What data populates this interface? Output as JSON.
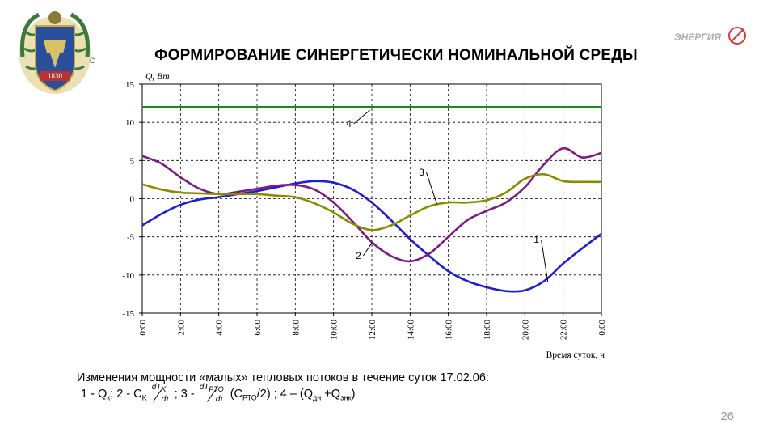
{
  "slide": {
    "title": "ФОРМИРОВАНИЕ СИНЕРГЕТИЧЕСКИ НОМИНАЛЬНОЙ СРЕДЫ",
    "logo_text": "ЭНЕРГИЯ",
    "emblem_year": "1830",
    "emblem_letter": "С",
    "page_number": "26",
    "caption": "Изменения мощности «малых» тепловых потоков в течение суток 17.02.06:",
    "formula": {
      "p1": "1 - Q",
      "p1_sub": "к",
      "p2": "; 2 - C",
      "p2_sub": "K",
      "frac1_num": "dT",
      "frac1_num_sub": "K",
      "frac1_den": "dτ",
      "p3": "; 3 - ",
      "frac2_num": "dT",
      "frac2_num_sub": "PTO",
      "frac2_den": "dτ",
      "p4": "(C",
      "p4_sub": "РТО",
      "p5": "/2) ;   4 – (Q",
      "p5_sub": "дн",
      "p6": " +Q",
      "p6_sub": "энк",
      "p7": ")"
    }
  },
  "chart_data": {
    "type": "line",
    "ylabel": "Q, Вт",
    "xlabel": "Время суток, ч",
    "ylim": [
      -15,
      15
    ],
    "yticks": [
      15,
      10,
      5,
      0,
      -5,
      -10,
      -15
    ],
    "xlim": [
      0,
      24
    ],
    "xticks": [
      "0:00",
      "2:00",
      "4:00",
      "6:00",
      "8:00",
      "10:00",
      "12:00",
      "14:00",
      "16:00",
      "18:00",
      "20:00",
      "22:00",
      "0:00"
    ],
    "grid": true,
    "series": [
      {
        "name": "1",
        "color": "#1f1fd0",
        "x": [
          0,
          1,
          2,
          3,
          4,
          5,
          6,
          7,
          8,
          9,
          10,
          11,
          12,
          13,
          14,
          15,
          16,
          17,
          18,
          19,
          20,
          21,
          22,
          23,
          24
        ],
        "y": [
          -3.5,
          -2,
          -0.8,
          -0.1,
          0.2,
          0.6,
          1.0,
          1.5,
          2.0,
          2.3,
          2.1,
          1.2,
          -0.5,
          -2.8,
          -5.3,
          -7.5,
          -9.5,
          -10.8,
          -11.6,
          -12.1,
          -12.0,
          -10.8,
          -8.5,
          -6.5,
          -4.6
        ]
      },
      {
        "name": "2",
        "color": "#7d1a87",
        "x": [
          0,
          1,
          2,
          3,
          4,
          5,
          6,
          7,
          8,
          9,
          10,
          11,
          12,
          13,
          14,
          15,
          16,
          17,
          18,
          19,
          20,
          21,
          22,
          23,
          24
        ],
        "y": [
          5.6,
          4.6,
          2.8,
          1.3,
          0.6,
          0.9,
          1.3,
          1.7,
          1.8,
          1.2,
          -0.5,
          -3.0,
          -5.7,
          -7.5,
          -8.2,
          -7.2,
          -5.0,
          -2.8,
          -1.6,
          -0.5,
          1.5,
          4.5,
          6.6,
          5.4,
          6.0
        ]
      },
      {
        "name": "3",
        "color": "#8b8b00",
        "x": [
          0,
          1,
          2,
          3,
          4,
          5,
          6,
          7,
          8,
          9,
          10,
          11,
          12,
          13,
          14,
          15,
          16,
          17,
          18,
          19,
          20,
          21,
          22,
          23,
          24
        ],
        "y": [
          1.9,
          1.2,
          0.8,
          0.7,
          0.6,
          0.6,
          0.6,
          0.4,
          0.2,
          -0.6,
          -1.8,
          -3.3,
          -4.1,
          -3.5,
          -2.2,
          -1.0,
          -0.5,
          -0.5,
          -0.2,
          0.8,
          2.6,
          3.2,
          2.3,
          2.2,
          2.2
        ]
      },
      {
        "name": "4",
        "color": "#1a8a1a",
        "x": [
          0,
          24
        ],
        "y": [
          12,
          12
        ]
      }
    ],
    "annotations": [
      {
        "label": "1",
        "x": 20.6,
        "y": -5.8,
        "tx": 21.2,
        "ty": -10.9
      },
      {
        "label": "2",
        "x": 11.3,
        "y": -7.9,
        "tx": 12.0,
        "ty": -5.8
      },
      {
        "label": "3",
        "x": 14.6,
        "y": 3.0,
        "tx": 15.4,
        "ty": -0.7
      },
      {
        "label": "4",
        "x": 10.8,
        "y": 9.4,
        "tx": 11.9,
        "ty": 11.6
      }
    ]
  }
}
